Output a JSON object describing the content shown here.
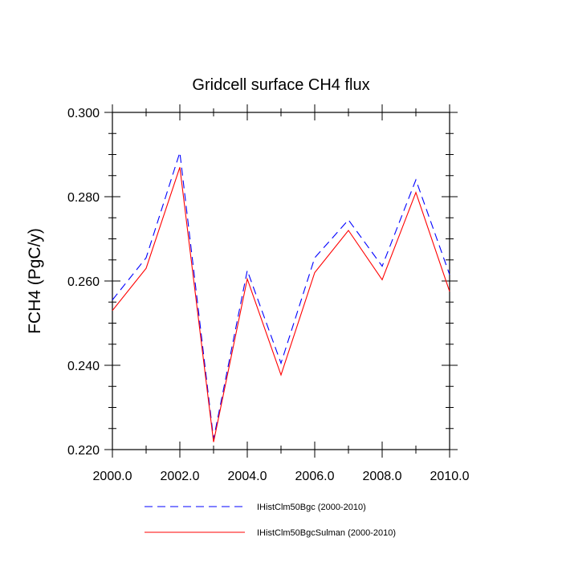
{
  "chart_data": {
    "type": "line",
    "title": "Gridcell surface CH4 flux",
    "xlabel": "",
    "ylabel": "FCH4  (PgC/y)",
    "xlim": [
      2000.0,
      2010.0
    ],
    "ylim": [
      0.22,
      0.3
    ],
    "x": [
      2000,
      2001,
      2002,
      2003,
      2004,
      2005,
      2006,
      2007,
      2008,
      2009,
      2010
    ],
    "x_tick_labels": [
      "2000.0",
      "2002.0",
      "2004.0",
      "2006.0",
      "2008.0",
      "2010.0"
    ],
    "x_ticks": [
      2000,
      2002,
      2004,
      2006,
      2008,
      2010
    ],
    "y_tick_labels": [
      "0.220",
      "0.240",
      "0.260",
      "0.280",
      "0.300"
    ],
    "y_ticks": [
      0.22,
      0.24,
      0.26,
      0.28,
      0.3
    ],
    "grid": false,
    "legend_position": "bottom",
    "series": [
      {
        "name": "IHistClm50Bgc (2000-2010)",
        "color": "#0000ff",
        "dash": "dashed",
        "values": [
          0.2555,
          0.2655,
          0.2905,
          0.2225,
          0.2625,
          0.2405,
          0.2655,
          0.2745,
          0.2635,
          0.284,
          0.2615
        ]
      },
      {
        "name": "IHistClm50BgcSulman (2000-2010)",
        "color": "#ff0000",
        "dash": "solid",
        "values": [
          0.253,
          0.263,
          0.287,
          0.2218,
          0.2605,
          0.2377,
          0.262,
          0.272,
          0.2603,
          0.281,
          0.2575
        ]
      }
    ]
  }
}
